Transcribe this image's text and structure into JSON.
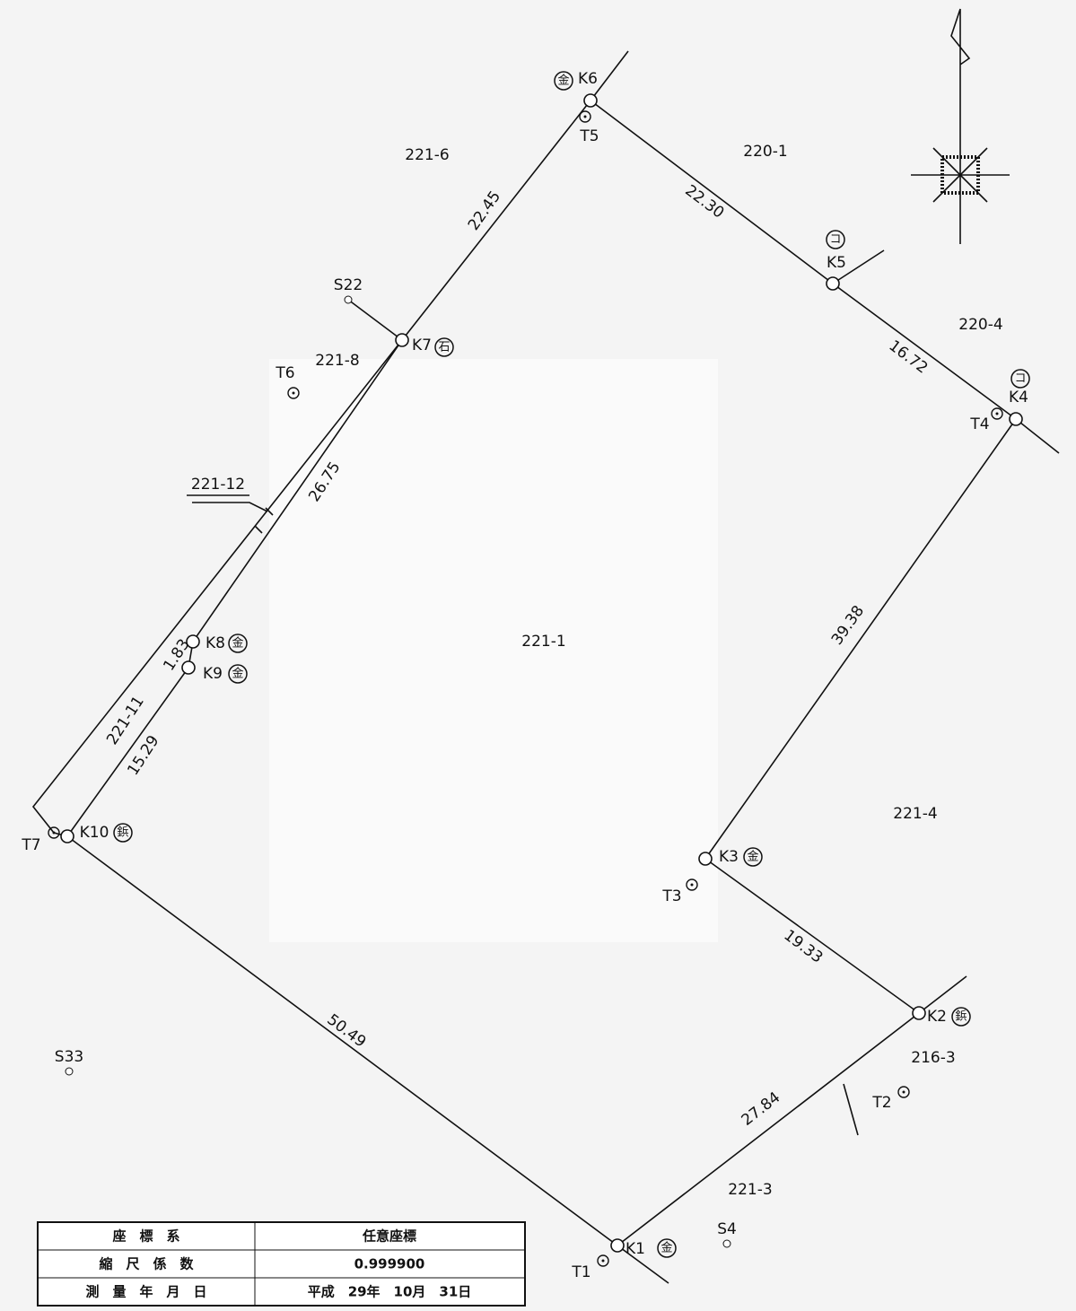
{
  "map": {
    "points": [
      {
        "label": "K1",
        "mark": "金"
      },
      {
        "label": "K2",
        "mark": "鋲"
      },
      {
        "label": "K3",
        "mark": "金"
      },
      {
        "label": "K4",
        "mark": "コ"
      },
      {
        "label": "K5",
        "mark": "コ"
      },
      {
        "label": "K6",
        "mark": "金"
      },
      {
        "label": "K7",
        "mark": "石"
      },
      {
        "label": "K8",
        "mark": "金"
      },
      {
        "label": "K9",
        "mark": "金"
      },
      {
        "label": "K10",
        "mark": "鋲"
      }
    ],
    "traverse_points": [
      "T1",
      "T2",
      "T3",
      "T4",
      "T5",
      "T6",
      "T7"
    ],
    "other_points": [
      "S22",
      "S33",
      "S4"
    ],
    "distances": [
      "22.45",
      "22.30",
      "16.72",
      "26.75",
      "39.38",
      "19.33",
      "27.84",
      "50.49",
      "15.29",
      "1.83"
    ],
    "parcels": [
      "221-6",
      "220-1",
      "220-4",
      "221-8",
      "221-12",
      "221-1",
      "221-4",
      "216-3",
      "221-3",
      "221-11"
    ]
  },
  "table": {
    "rows": [
      [
        "座　標　系",
        "任意座標"
      ],
      [
        "縮　尺　係　数",
        "0.999900"
      ],
      [
        "測　量　年　月　日",
        "平成　29年　10月　31日"
      ]
    ]
  }
}
